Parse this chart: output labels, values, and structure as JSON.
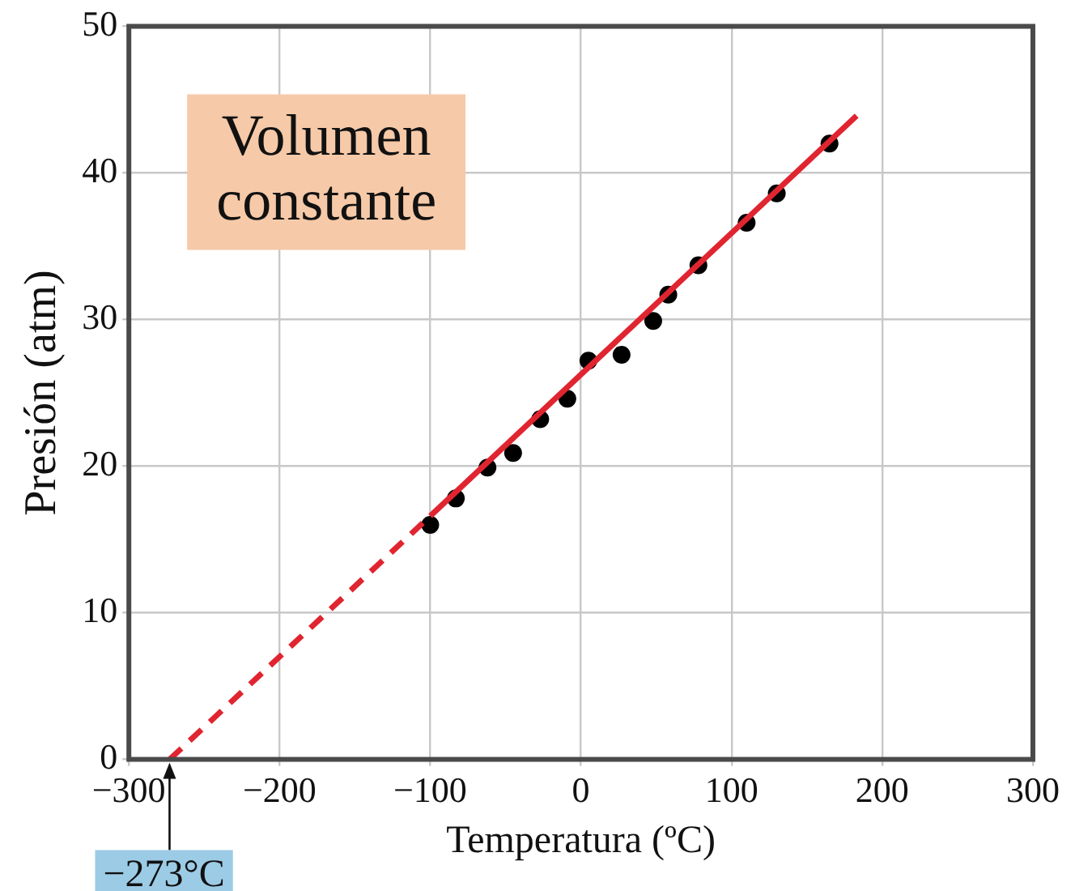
{
  "chart_data": {
    "type": "scatter",
    "xlabel": "Temperatura (ºC)",
    "ylabel": "Presión (atm)",
    "xlim": [
      -300,
      300
    ],
    "ylim": [
      0,
      50
    ],
    "xticks": [
      {
        "value": -300,
        "label": "−300"
      },
      {
        "value": -200,
        "label": "−200"
      },
      {
        "value": -100,
        "label": "−100"
      },
      0,
      100,
      200,
      300
    ],
    "yticks": [
      0,
      10,
      20,
      30,
      40,
      50
    ],
    "grid": true,
    "legend": false,
    "series": [
      {
        "type": "line",
        "color": "#e02530",
        "line_style": "dashed",
        "marker": "none",
        "x": [
          -273,
          -100
        ],
        "values": [
          0,
          16.6
        ]
      },
      {
        "type": "line",
        "color": "#e02530",
        "line_style": "solid",
        "marker": "none",
        "x": [
          -100,
          183
        ],
        "values": [
          16.6,
          43.9
        ]
      },
      {
        "type": "scatter",
        "color": "#000000",
        "marker": "circle",
        "x": [
          -100,
          -83,
          -62,
          -45,
          -27,
          -9,
          5,
          27,
          48,
          58,
          78,
          110,
          130,
          165
        ],
        "values": [
          16.0,
          17.8,
          19.9,
          20.9,
          23.2,
          24.6,
          27.2,
          27.6,
          29.9,
          31.7,
          33.7,
          36.6,
          38.6,
          42.0
        ]
      }
    ],
    "annotations": [
      "Volumen\nconstante",
      {
        "text": "−273°C",
        "x": -273,
        "y": 0
      }
    ]
  }
}
